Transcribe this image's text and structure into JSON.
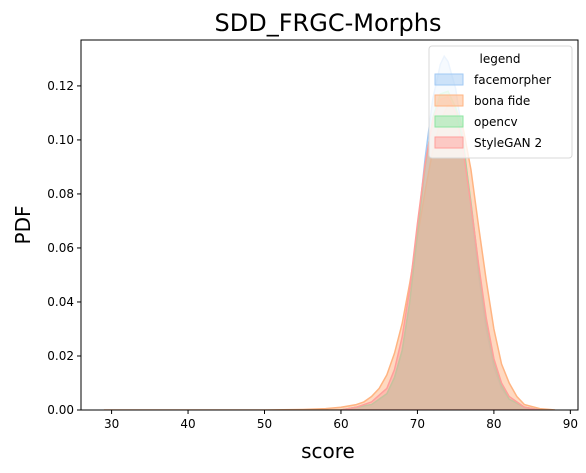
{
  "chart_data": {
    "type": "area",
    "title": "SDD_FRGC-Morphs",
    "xlabel": "score",
    "ylabel": "PDF",
    "xlim": [
      26,
      91
    ],
    "ylim": [
      0,
      0.137
    ],
    "xticks": [
      30,
      40,
      50,
      60,
      70,
      80,
      90
    ],
    "yticks": [
      0.0,
      0.02,
      0.04,
      0.06,
      0.08,
      0.1,
      0.12
    ],
    "legend": {
      "title": "legend",
      "placement": "top-right"
    },
    "series": [
      {
        "name": "facemorpher",
        "color": "#a1c9f4",
        "x": [
          60,
          62,
          64,
          66,
          67,
          68,
          69,
          70,
          71,
          72,
          73,
          73.5,
          74,
          75,
          76,
          77,
          78,
          79,
          80,
          81,
          82,
          84,
          86
        ],
        "y": [
          0.0,
          0.001,
          0.002,
          0.006,
          0.012,
          0.022,
          0.04,
          0.066,
          0.093,
          0.115,
          0.128,
          0.131,
          0.129,
          0.119,
          0.1,
          0.075,
          0.05,
          0.03,
          0.016,
          0.008,
          0.004,
          0.001,
          0.0
        ]
      },
      {
        "name": "bona fide",
        "color": "#ffb482",
        "x": [
          29,
          40,
          50,
          55,
          58,
          60,
          62,
          63,
          64,
          65,
          66,
          67,
          68,
          69,
          70,
          71,
          72,
          73,
          74,
          75,
          76,
          77,
          78,
          79,
          80,
          81,
          82,
          83,
          84,
          86,
          88
        ],
        "y": [
          0.0,
          0.0,
          0.0,
          0.0002,
          0.0005,
          0.001,
          0.002,
          0.003,
          0.005,
          0.008,
          0.013,
          0.021,
          0.032,
          0.047,
          0.064,
          0.081,
          0.096,
          0.107,
          0.113,
          0.112,
          0.104,
          0.089,
          0.068,
          0.048,
          0.03,
          0.017,
          0.01,
          0.005,
          0.002,
          0.0005,
          0.0
        ]
      },
      {
        "name": "opencv",
        "color": "#8de5a1",
        "x": [
          60,
          62,
          64,
          66,
          67,
          68,
          69,
          70,
          71,
          72,
          73,
          74,
          75,
          76,
          77,
          78,
          79,
          80,
          81,
          82,
          84,
          86
        ],
        "y": [
          0.0,
          0.001,
          0.002,
          0.006,
          0.012,
          0.022,
          0.04,
          0.065,
          0.09,
          0.108,
          0.117,
          0.118,
          0.112,
          0.098,
          0.077,
          0.053,
          0.033,
          0.018,
          0.009,
          0.004,
          0.001,
          0.0
        ]
      },
      {
        "name": "StyleGAN 2",
        "color": "#ff9f9b",
        "x": [
          60,
          62,
          64,
          66,
          67,
          68,
          69,
          70,
          71,
          72,
          73,
          74,
          75,
          76,
          77,
          78,
          79,
          80,
          81,
          82,
          84,
          86
        ],
        "y": [
          0.0,
          0.001,
          0.003,
          0.008,
          0.015,
          0.027,
          0.045,
          0.069,
          0.091,
          0.107,
          0.115,
          0.116,
          0.11,
          0.096,
          0.076,
          0.054,
          0.034,
          0.019,
          0.01,
          0.005,
          0.001,
          0.0
        ]
      }
    ]
  }
}
